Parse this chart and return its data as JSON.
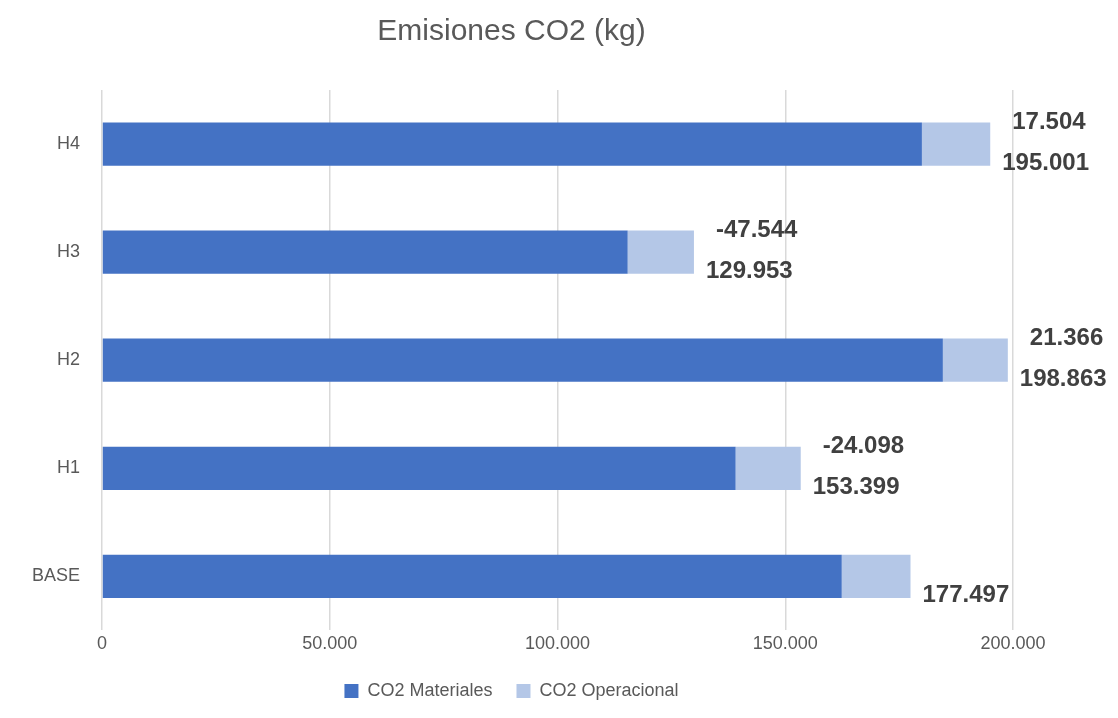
{
  "chart_data": {
    "type": "bar",
    "title": "Emisiones CO2 (kg)",
    "orientation": "horizontal",
    "stacked": true,
    "categories": [
      "H4",
      "H3",
      "H2",
      "H1",
      "BASE"
    ],
    "series": [
      {
        "name": "CO2 Materiales",
        "color": "#4472c4",
        "values": [
          180000,
          115400,
          184600,
          139100,
          162400
        ]
      },
      {
        "name": "CO2 Operacional",
        "color": "#b4c7e7",
        "values": [
          15001,
          14553,
          14263,
          14299,
          15097
        ]
      }
    ],
    "totals": [
      "195.001",
      "129.953",
      "198.863",
      "153.399",
      "177.497"
    ],
    "annotations": [
      {
        "text": "17.504",
        "x": 195001,
        "y": "H4"
      },
      {
        "text": "-47.544",
        "x": 129953,
        "y": "H3"
      },
      {
        "text": "21.366",
        "x": 198863,
        "y": "H2"
      },
      {
        "text": "-24.098",
        "x": 153399,
        "y": "H1"
      }
    ],
    "xlim": [
      0,
      200000
    ],
    "xticks": [
      {
        "value": 0,
        "label": "0"
      },
      {
        "value": 50000,
        "label": "50.000"
      },
      {
        "value": 100000,
        "label": "100.000"
      },
      {
        "value": 150000,
        "label": "150.000"
      },
      {
        "value": 200000,
        "label": "200.000"
      }
    ],
    "grid": "x",
    "legend": "bottom"
  }
}
